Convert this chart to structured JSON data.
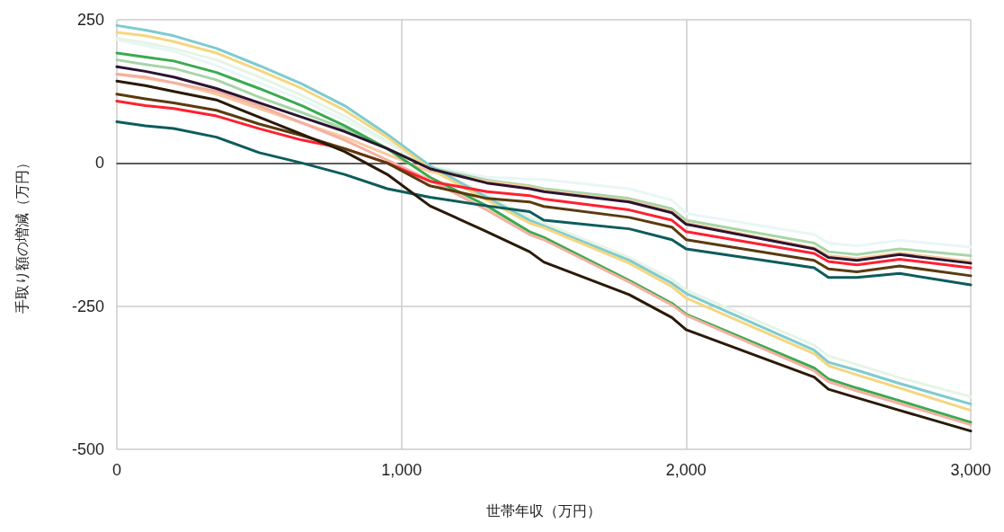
{
  "chart_data": {
    "type": "line",
    "xlabel": "世帯年収（万円）",
    "ylabel": "手取り額の増減（万円）",
    "x": [
      0,
      100,
      200,
      350,
      500,
      650,
      800,
      950,
      1100,
      1300,
      1450,
      1500,
      1800,
      1950,
      2000,
      2450,
      2500,
      2600,
      2750,
      3000
    ],
    "xlim": [
      0,
      3000
    ],
    "xticks": [
      {
        "value": 0,
        "label": "0"
      },
      {
        "value": 1000,
        "label": "1,000"
      },
      {
        "value": 2000,
        "label": "2,000"
      },
      {
        "value": 3000,
        "label": "3,000"
      }
    ],
    "ylim": [
      -500,
      250
    ],
    "yticks": [
      -500,
      -250,
      0,
      250
    ],
    "grid": true,
    "marker": "none",
    "line_style": "solid",
    "series": [
      {
        "color": "#e8f6f6",
        "values": [
          215,
          205,
          195,
          170,
          140,
          110,
          75,
          35,
          -5,
          -25,
          -28,
          -29,
          -45,
          -65,
          -88,
          -125,
          -140,
          -145,
          -135,
          -147
        ]
      },
      {
        "color": "#e6f4e6",
        "values": [
          218,
          210,
          200,
          180,
          150,
          118,
          82,
          38,
          -8,
          -55,
          -95,
          -105,
          -165,
          -203,
          -222,
          -318,
          -337,
          -352,
          -375,
          -408
        ]
      },
      {
        "color": "#a8d5a8",
        "values": [
          180,
          172,
          165,
          145,
          115,
          88,
          60,
          25,
          -8,
          -30,
          -40,
          -45,
          -62,
          -80,
          -100,
          -140,
          -155,
          -160,
          -150,
          -162
        ]
      },
      {
        "color": "#f8c8a0",
        "values": [
          155,
          148,
          140,
          120,
          95,
          70,
          45,
          15,
          -15,
          -32,
          -42,
          -48,
          -66,
          -85,
          -105,
          -148,
          -162,
          -167,
          -157,
          -172
        ]
      },
      {
        "color": "#7ecbd0",
        "values": [
          240,
          232,
          222,
          200,
          170,
          138,
          100,
          50,
          -5,
          -60,
          -100,
          -110,
          -170,
          -210,
          -228,
          -327,
          -348,
          -362,
          -385,
          -421
        ]
      },
      {
        "color": "#f5d680",
        "values": [
          228,
          222,
          212,
          192,
          162,
          130,
          92,
          45,
          -10,
          -65,
          -105,
          -113,
          -175,
          -216,
          -236,
          -333,
          -354,
          -370,
          -393,
          -432
        ]
      },
      {
        "color": "#3aaa50",
        "values": [
          192,
          185,
          178,
          158,
          130,
          100,
          65,
          25,
          -25,
          -75,
          -120,
          -130,
          -205,
          -245,
          -264,
          -358,
          -377,
          -393,
          -415,
          -453
        ]
      },
      {
        "color": "#f4b0a0",
        "values": [
          155,
          150,
          140,
          125,
          100,
          70,
          40,
          5,
          -30,
          -82,
          -125,
          -134,
          -208,
          -248,
          -266,
          -363,
          -382,
          -398,
          -420,
          -457
        ]
      },
      {
        "color": "#2a1530",
        "values": [
          168,
          160,
          150,
          130,
          105,
          80,
          55,
          25,
          -10,
          -35,
          -45,
          -50,
          -68,
          -87,
          -107,
          -150,
          -165,
          -170,
          -160,
          -175
        ]
      },
      {
        "color": "#ff2030",
        "values": [
          108,
          100,
          95,
          82,
          60,
          40,
          25,
          0,
          -32,
          -50,
          -57,
          -63,
          -82,
          -100,
          -120,
          -158,
          -172,
          -178,
          -168,
          -183
        ]
      },
      {
        "color": "#5a3a10",
        "values": [
          120,
          112,
          105,
          92,
          68,
          48,
          25,
          0,
          -40,
          -62,
          -68,
          -76,
          -95,
          -112,
          -134,
          -170,
          -185,
          -190,
          -180,
          -197
        ]
      },
      {
        "color": "#0e5c5c",
        "values": [
          72,
          65,
          60,
          45,
          18,
          0,
          -20,
          -45,
          -60,
          -75,
          -85,
          -100,
          -115,
          -134,
          -150,
          -183,
          -200,
          -200,
          -193,
          -213
        ]
      },
      {
        "color": "#2a1a08",
        "values": [
          143,
          135,
          125,
          110,
          80,
          50,
          20,
          -20,
          -75,
          -120,
          -155,
          -173,
          -230,
          -270,
          -291,
          -374,
          -395,
          -410,
          -432,
          -468
        ]
      }
    ]
  }
}
